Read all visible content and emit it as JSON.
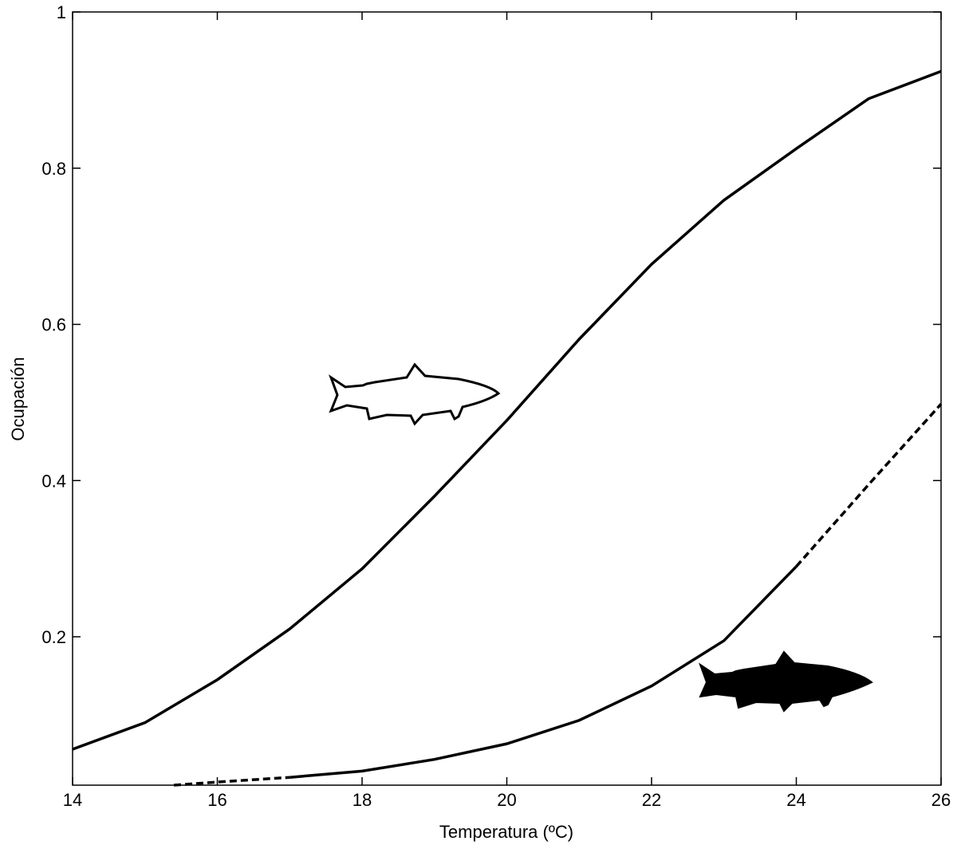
{
  "chart_data": {
    "type": "line",
    "x_label": "Temperatura (ºC)",
    "y_label": "Ocupación",
    "xlim": [
      14,
      26
    ],
    "xticks": [
      14,
      16,
      18,
      20,
      22,
      24,
      26
    ],
    "ylim": [
      0.01,
      1
    ],
    "yticks": [
      0.2,
      0.4,
      0.6,
      0.8,
      1
    ],
    "series": [
      {
        "color": "#000000",
        "style": "solid",
        "x": [
          14,
          15,
          16,
          17,
          18,
          19,
          20,
          21,
          22,
          23,
          24,
          25,
          26
        ],
        "values": [
          0.056,
          0.09,
          0.145,
          0.21,
          0.287,
          0.38,
          0.477,
          0.581,
          0.677,
          0.759,
          0.825,
          0.889,
          0.924
        ]
      },
      {
        "color": "#000000",
        "style": "dashed",
        "x": [
          15.4,
          16,
          17
        ],
        "values": [
          0.01,
          0.014,
          0.02
        ]
      },
      {
        "color": "#000000",
        "style": "solid",
        "x": [
          17,
          18,
          19,
          20,
          21,
          22,
          23,
          24
        ],
        "values": [
          0.02,
          0.028,
          0.043,
          0.063,
          0.093,
          0.137,
          0.195,
          0.29
        ]
      },
      {
        "color": "#000000",
        "style": "dashed",
        "x": [
          24,
          25,
          26
        ],
        "values": [
          0.29,
          0.395,
          0.498
        ]
      }
    ]
  }
}
